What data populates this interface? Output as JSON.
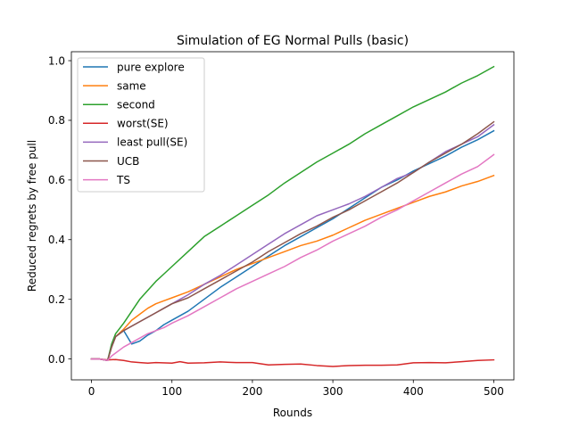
{
  "chart_data": {
    "type": "line",
    "title": "Simulation of EG Normal Pulls (basic)",
    "xlabel": "Rounds",
    "ylabel": "Reduced regrets by free pull",
    "xlim": [
      -25,
      525
    ],
    "ylim": [
      -0.07,
      1.03
    ],
    "xticks": [
      0,
      100,
      200,
      300,
      400,
      500
    ],
    "xtick_labels": [
      "0",
      "100",
      "200",
      "300",
      "400",
      "500"
    ],
    "yticks": [
      0.0,
      0.2,
      0.4,
      0.6,
      0.8,
      1.0
    ],
    "ytick_labels": [
      "0.0",
      "0.2",
      "0.4",
      "0.6",
      "0.8",
      "1.0"
    ],
    "grid": false,
    "legend_position": "top-left",
    "series": [
      {
        "name": "pure explore",
        "color": "#1f77b4",
        "x": [
          0,
          10,
          20,
          25,
          30,
          40,
          50,
          60,
          70,
          80,
          90,
          100,
          120,
          140,
          160,
          180,
          200,
          220,
          240,
          260,
          280,
          300,
          320,
          340,
          360,
          380,
          400,
          420,
          440,
          460,
          480,
          500
        ],
        "y": [
          0.0,
          0.0,
          -0.005,
          0.04,
          0.075,
          0.095,
          0.05,
          0.06,
          0.08,
          0.095,
          0.115,
          0.13,
          0.16,
          0.2,
          0.24,
          0.275,
          0.31,
          0.345,
          0.38,
          0.41,
          0.44,
          0.47,
          0.505,
          0.54,
          0.575,
          0.6,
          0.63,
          0.655,
          0.68,
          0.71,
          0.735,
          0.765
        ]
      },
      {
        "name": "same",
        "color": "#ff7f0e",
        "x": [
          0,
          10,
          20,
          25,
          30,
          40,
          50,
          60,
          70,
          80,
          90,
          100,
          120,
          140,
          160,
          180,
          200,
          220,
          240,
          260,
          280,
          300,
          320,
          340,
          360,
          380,
          400,
          420,
          440,
          460,
          480,
          500
        ],
        "y": [
          0.0,
          0.0,
          -0.005,
          0.04,
          0.075,
          0.1,
          0.13,
          0.15,
          0.17,
          0.185,
          0.195,
          0.205,
          0.225,
          0.25,
          0.275,
          0.3,
          0.32,
          0.34,
          0.36,
          0.38,
          0.395,
          0.415,
          0.44,
          0.465,
          0.485,
          0.505,
          0.525,
          0.545,
          0.56,
          0.58,
          0.595,
          0.615
        ]
      },
      {
        "name": "second",
        "color": "#2ca02c",
        "x": [
          0,
          10,
          20,
          25,
          30,
          40,
          50,
          60,
          70,
          80,
          90,
          100,
          120,
          140,
          160,
          180,
          200,
          220,
          240,
          260,
          280,
          300,
          320,
          340,
          360,
          380,
          400,
          420,
          440,
          460,
          480,
          500
        ],
        "y": [
          0.0,
          0.0,
          -0.005,
          0.05,
          0.085,
          0.12,
          0.16,
          0.2,
          0.23,
          0.26,
          0.285,
          0.31,
          0.36,
          0.41,
          0.445,
          0.48,
          0.515,
          0.55,
          0.59,
          0.625,
          0.66,
          0.69,
          0.72,
          0.755,
          0.785,
          0.815,
          0.845,
          0.87,
          0.895,
          0.925,
          0.95,
          0.98
        ]
      },
      {
        "name": "worst(SE)",
        "color": "#d62728",
        "x": [
          0,
          10,
          20,
          30,
          40,
          50,
          60,
          70,
          80,
          100,
          110,
          120,
          140,
          160,
          180,
          200,
          220,
          240,
          260,
          280,
          300,
          320,
          340,
          360,
          380,
          400,
          420,
          440,
          460,
          480,
          500
        ],
        "y": [
          0.0,
          0.0,
          -0.003,
          -0.002,
          -0.005,
          -0.01,
          -0.012,
          -0.014,
          -0.012,
          -0.014,
          -0.009,
          -0.014,
          -0.013,
          -0.01,
          -0.012,
          -0.012,
          -0.02,
          -0.018,
          -0.017,
          -0.022,
          -0.025,
          -0.022,
          -0.021,
          -0.021,
          -0.02,
          -0.013,
          -0.012,
          -0.013,
          -0.009,
          -0.005,
          -0.003
        ]
      },
      {
        "name": "least pull(SE)",
        "color": "#9467bd",
        "x": [
          0,
          10,
          20,
          25,
          30,
          40,
          50,
          60,
          70,
          80,
          90,
          100,
          120,
          140,
          160,
          180,
          200,
          220,
          240,
          260,
          280,
          300,
          320,
          340,
          360,
          380,
          400,
          420,
          440,
          460,
          480,
          500
        ],
        "y": [
          0.0,
          0.0,
          -0.005,
          0.04,
          0.075,
          0.095,
          0.11,
          0.125,
          0.14,
          0.155,
          0.17,
          0.185,
          0.215,
          0.25,
          0.28,
          0.315,
          0.35,
          0.385,
          0.42,
          0.45,
          0.48,
          0.5,
          0.52,
          0.545,
          0.575,
          0.605,
          0.625,
          0.66,
          0.695,
          0.72,
          0.745,
          0.785
        ]
      },
      {
        "name": "UCB",
        "color": "#8c564b",
        "x": [
          0,
          10,
          20,
          25,
          30,
          40,
          50,
          60,
          70,
          80,
          90,
          100,
          120,
          140,
          160,
          180,
          200,
          220,
          240,
          260,
          280,
          300,
          320,
          340,
          360,
          380,
          400,
          420,
          440,
          460,
          480,
          500
        ],
        "y": [
          0.0,
          0.0,
          -0.005,
          0.04,
          0.075,
          0.095,
          0.11,
          0.125,
          0.14,
          0.155,
          0.17,
          0.185,
          0.205,
          0.235,
          0.265,
          0.295,
          0.325,
          0.36,
          0.39,
          0.42,
          0.445,
          0.475,
          0.5,
          0.53,
          0.56,
          0.59,
          0.625,
          0.66,
          0.69,
          0.72,
          0.755,
          0.795
        ]
      },
      {
        "name": "TS",
        "color": "#e377c2",
        "x": [
          0,
          10,
          20,
          25,
          30,
          40,
          50,
          60,
          70,
          80,
          90,
          100,
          120,
          140,
          160,
          180,
          200,
          220,
          240,
          260,
          280,
          300,
          320,
          340,
          360,
          380,
          400,
          420,
          440,
          460,
          480,
          500
        ],
        "y": [
          0.0,
          0.0,
          -0.005,
          0.01,
          0.02,
          0.04,
          0.055,
          0.07,
          0.085,
          0.095,
          0.105,
          0.12,
          0.145,
          0.175,
          0.205,
          0.235,
          0.26,
          0.285,
          0.31,
          0.34,
          0.365,
          0.395,
          0.42,
          0.445,
          0.475,
          0.5,
          0.53,
          0.56,
          0.59,
          0.62,
          0.645,
          0.685
        ]
      }
    ]
  }
}
